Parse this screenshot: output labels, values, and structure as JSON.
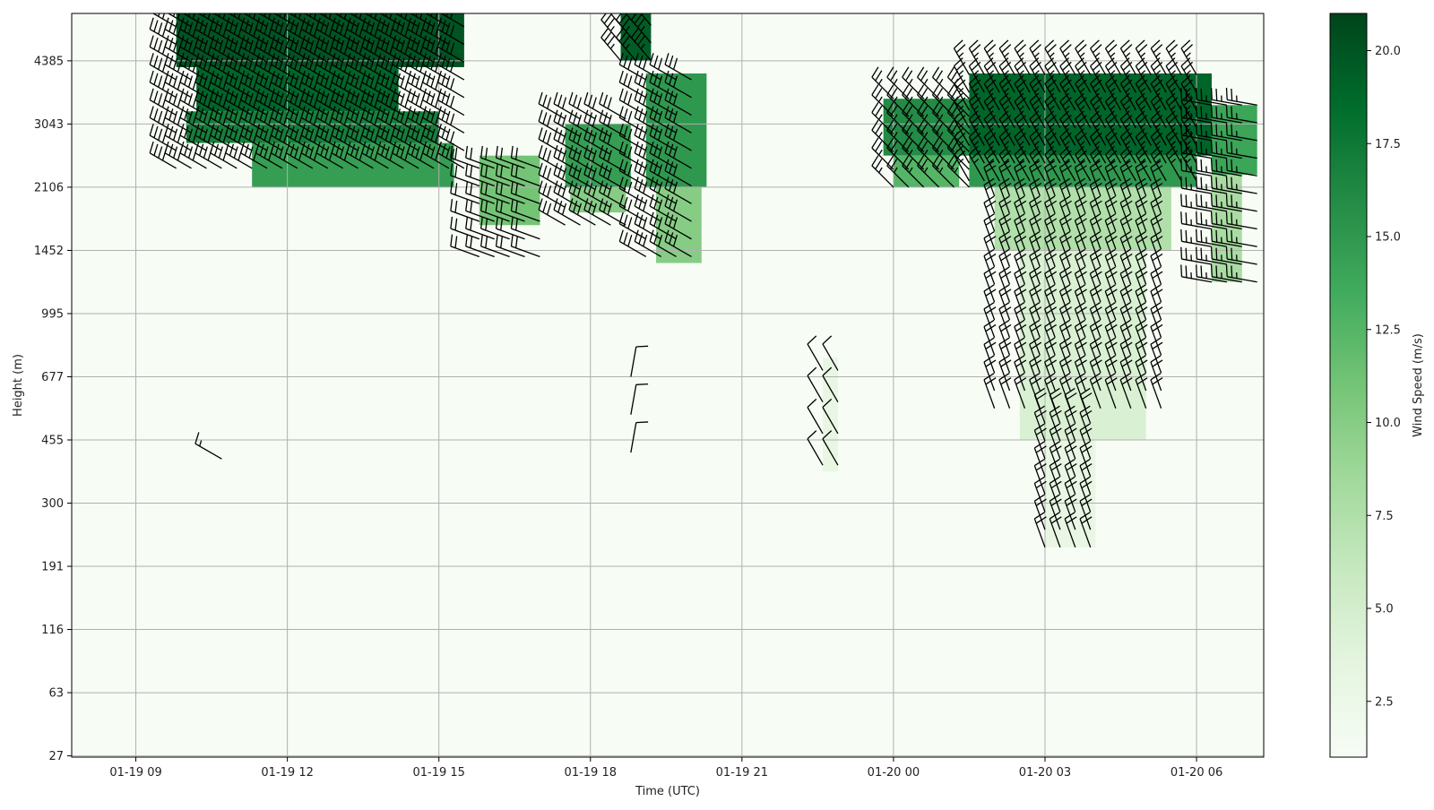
{
  "chart_data": {
    "type": "heatmap",
    "title": "",
    "xlabel": "Time (UTC)",
    "ylabel": "Height (m)",
    "x_ticks": [
      "01-19 09",
      "01-19 12",
      "01-19 15",
      "01-19 18",
      "01-19 21",
      "01-20 00",
      "01-20 03",
      "01-20 06"
    ],
    "x_tick_hours": [
      0,
      3,
      6,
      9,
      12,
      15,
      18,
      21
    ],
    "xlim_hours": [
      -1.27,
      22.33
    ],
    "y_ticks": [
      "27",
      "63",
      "116",
      "191",
      "300",
      "455",
      "677",
      "995",
      "1452",
      "2106",
      "3043",
      "4385"
    ],
    "ylim_levels": [
      -0.02,
      11.75
    ],
    "grid": true,
    "colorbar": {
      "label": "Wind Speed (m/s)",
      "range": [
        1.0,
        21.0
      ],
      "ticks": [
        "2.5",
        "5.0",
        "7.5",
        "10.0",
        "12.5",
        "15.0",
        "17.5",
        "20.0"
      ],
      "tick_values": [
        2.5,
        5.0,
        7.5,
        10.0,
        12.5,
        15.0,
        17.5,
        20.0
      ],
      "colormap": "Greens",
      "color_stops": [
        "#f7fcf5",
        "#e5f5e0",
        "#c7e9c0",
        "#a1d99b",
        "#74c476",
        "#41ab5d",
        "#238b45",
        "#006d2c",
        "#00441b"
      ]
    },
    "speed_regions_hours_levels_ms": [
      {
        "t": [
          0.8,
          6.5
        ],
        "z": [
          10.9,
          11.75
        ],
        "speed": 20.0
      },
      {
        "t": [
          1.2,
          5.2
        ],
        "z": [
          10.2,
          10.9
        ],
        "speed": 19.0
      },
      {
        "t": [
          1.0,
          6.0
        ],
        "z": [
          9.7,
          10.2
        ],
        "speed": 17.0
      },
      {
        "t": [
          2.3,
          6.3
        ],
        "z": [
          9.0,
          9.7
        ],
        "speed": 14.5
      },
      {
        "t": [
          6.8,
          8.0
        ],
        "z": [
          8.4,
          9.5
        ],
        "speed": 11.0
      },
      {
        "t": [
          8.5,
          9.8
        ],
        "z": [
          9.0,
          10.0
        ],
        "speed": 14.5
      },
      {
        "t": [
          8.6,
          9.7
        ],
        "z": [
          8.6,
          9.0
        ],
        "speed": 10.0
      },
      {
        "t": [
          9.6,
          10.2
        ],
        "z": [
          11.0,
          11.75
        ],
        "speed": 19.5
      },
      {
        "t": [
          10.1,
          11.3
        ],
        "z": [
          9.0,
          10.8
        ],
        "speed": 15.0
      },
      {
        "t": [
          10.3,
          11.2
        ],
        "z": [
          7.8,
          9.0
        ],
        "speed": 10.0
      },
      {
        "t": [
          14.8,
          16.5
        ],
        "z": [
          9.5,
          10.4
        ],
        "speed": 16.0
      },
      {
        "t": [
          15.0,
          16.3
        ],
        "z": [
          9.0,
          9.5
        ],
        "speed": 12.5
      },
      {
        "t": [
          16.5,
          21.3
        ],
        "z": [
          9.5,
          10.8
        ],
        "speed": 19.0
      },
      {
        "t": [
          16.5,
          21.0
        ],
        "z": [
          9.0,
          9.5
        ],
        "speed": 15.0
      },
      {
        "t": [
          17.0,
          20.5
        ],
        "z": [
          8.0,
          9.0
        ],
        "speed": 7.5
      },
      {
        "t": [
          17.5,
          20.0
        ],
        "z": [
          5.0,
          8.0
        ],
        "speed": 4.5
      },
      {
        "t": [
          18.0,
          19.0
        ],
        "z": [
          3.3,
          5.0
        ],
        "speed": 3.0
      },
      {
        "t": [
          21.3,
          22.2
        ],
        "z": [
          9.2,
          10.3
        ],
        "speed": 14.0
      },
      {
        "t": [
          21.3,
          21.9
        ],
        "z": [
          7.5,
          9.2
        ],
        "speed": 8.0
      },
      {
        "t": [
          13.6,
          13.9
        ],
        "z": [
          4.5,
          6.3
        ],
        "speed": 3.0
      }
    ],
    "barb_groups_hours_levels": [
      {
        "t": [
          0.8,
          6.5
        ],
        "z": [
          9.3,
          11.7
        ],
        "dt": 0.3,
        "dz": 0.28,
        "speed": 19,
        "dir": 300
      },
      {
        "t": [
          6.8,
          8.0
        ],
        "z": [
          7.9,
          9.5
        ],
        "dt": 0.3,
        "dz": 0.28,
        "speed": 11,
        "dir": 290
      },
      {
        "t": [
          8.5,
          9.7
        ],
        "z": [
          8.4,
          10.3
        ],
        "dt": 0.3,
        "dz": 0.28,
        "speed": 14,
        "dir": 300
      },
      {
        "t": [
          9.6,
          10.2
        ],
        "z": [
          11.0,
          11.7
        ],
        "dt": 0.3,
        "dz": 0.28,
        "speed": 17,
        "dir": 320
      },
      {
        "t": [
          10.1,
          11.0
        ],
        "z": [
          7.9,
          10.8
        ],
        "dt": 0.3,
        "dz": 0.28,
        "speed": 14,
        "dir": 300
      },
      {
        "t": [
          15.0,
          16.5
        ],
        "z": [
          9.0,
          10.4
        ],
        "dt": 0.3,
        "dz": 0.28,
        "speed": 13,
        "dir": 315
      },
      {
        "t": [
          16.5,
          21.0
        ],
        "z": [
          9.1,
          10.8
        ],
        "dt": 0.3,
        "dz": 0.28,
        "speed": 13,
        "dir": 330
      },
      {
        "t": [
          17.0,
          20.5
        ],
        "z": [
          5.5,
          9.0
        ],
        "dt": 0.3,
        "dz": 0.28,
        "speed": 11,
        "dir": 340
      },
      {
        "t": [
          18.0,
          19.0
        ],
        "z": [
          3.3,
          5.5
        ],
        "dt": 0.3,
        "dz": 0.28,
        "speed": 9,
        "dir": 340
      },
      {
        "t": [
          21.3,
          22.2
        ],
        "z": [
          7.5,
          10.3
        ],
        "dt": 0.3,
        "dz": 0.28,
        "speed": 12,
        "dir": 280
      },
      {
        "t": [
          13.6,
          13.9
        ],
        "z": [
          4.6,
          6.3
        ],
        "dt": 0.3,
        "dz": 0.5,
        "speed": 6,
        "dir": 330
      },
      {
        "t": [
          9.8,
          9.9
        ],
        "z": [
          4.8,
          6.0
        ],
        "dt": 0.3,
        "dz": 0.6,
        "speed": 5,
        "dir": 10
      }
    ],
    "barbs": [
      {
        "t": 1.7,
        "z": 4.7,
        "speed": 7,
        "dir": 300
      }
    ]
  }
}
